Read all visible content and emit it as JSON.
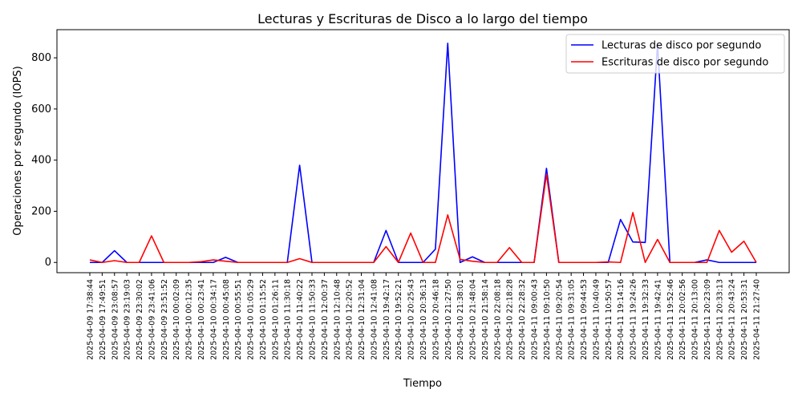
{
  "chart_data": {
    "type": "line",
    "title": "Lecturas y Escrituras de Disco a lo largo del tiempo",
    "xlabel": "Tiempo",
    "ylabel": "Operaciones por segundo (IOPS)",
    "ylim": [
      -40,
      910
    ],
    "yticks": [
      0,
      200,
      400,
      600,
      800
    ],
    "grid": false,
    "legend_position": "top-right",
    "x": [
      "2025-04-09 17:38:44",
      "2025-04-09 17:49:51",
      "2025-04-09 23:08:57",
      "2025-04-09 23:19:03",
      "2025-04-09 23:30:02",
      "2025-04-09 23:41:06",
      "2025-04-09 23:51:52",
      "2025-04-10 00:02:09",
      "2025-04-10 00:12:35",
      "2025-04-10 00:23:41",
      "2025-04-10 00:34:17",
      "2025-04-10 00:45:08",
      "2025-04-10 00:55:51",
      "2025-04-10 01:05:29",
      "2025-04-10 01:15:52",
      "2025-04-10 01:26:11",
      "2025-04-10 11:30:18",
      "2025-04-10 11:40:22",
      "2025-04-10 11:50:33",
      "2025-04-10 12:00:37",
      "2025-04-10 12:10:48",
      "2025-04-10 12:20:52",
      "2025-04-10 12:31:04",
      "2025-04-10 12:41:08",
      "2025-04-10 19:42:17",
      "2025-04-10 19:52:21",
      "2025-04-10 20:25:43",
      "2025-04-10 20:36:13",
      "2025-04-10 20:46:18",
      "2025-04-10 21:27:50",
      "2025-04-10 21:38:01",
      "2025-04-10 21:48:04",
      "2025-04-10 21:58:14",
      "2025-04-10 22:08:18",
      "2025-04-10 22:18:28",
      "2025-04-10 22:28:32",
      "2025-04-11 09:00:43",
      "2025-04-11 09:10:50",
      "2025-04-11 09:20:54",
      "2025-04-11 09:31:05",
      "2025-04-11 09:44:53",
      "2025-04-11 10:40:49",
      "2025-04-11 10:50:57",
      "2025-04-11 19:14:16",
      "2025-04-11 19:24:26",
      "2025-04-11 19:32:33",
      "2025-04-11 19:42:41",
      "2025-04-11 19:52:46",
      "2025-04-11 20:02:56",
      "2025-04-11 20:13:00",
      "2025-04-11 20:23:09",
      "2025-04-11 20:33:13",
      "2025-04-11 20:43:24",
      "2025-04-11 20:53:31",
      "2025-04-11 21:27:40"
    ],
    "series": [
      {
        "name": "Lecturas de disco por segundo",
        "color": "#0000ff",
        "values": [
          0,
          0,
          46,
          0,
          0,
          0,
          0,
          0,
          0,
          0,
          0,
          20,
          0,
          0,
          0,
          0,
          0,
          380,
          0,
          0,
          0,
          0,
          0,
          0,
          125,
          0,
          0,
          0,
          52,
          857,
          0,
          22,
          0,
          0,
          0,
          0,
          0,
          368,
          0,
          0,
          0,
          0,
          0,
          168,
          80,
          78,
          855,
          0,
          0,
          0,
          10,
          0,
          0,
          0,
          0
        ]
      },
      {
        "name": "Escrituras de disco por segundo",
        "color": "#ff0000",
        "values": [
          10,
          0,
          7,
          0,
          0,
          104,
          0,
          0,
          0,
          3,
          10,
          5,
          0,
          0,
          0,
          0,
          0,
          15,
          0,
          0,
          0,
          0,
          0,
          0,
          62,
          0,
          115,
          0,
          0,
          186,
          12,
          5,
          0,
          0,
          58,
          0,
          0,
          345,
          0,
          0,
          0,
          0,
          2,
          0,
          195,
          0,
          90,
          0,
          0,
          0,
          0,
          125,
          40,
          83,
          0
        ]
      }
    ]
  }
}
